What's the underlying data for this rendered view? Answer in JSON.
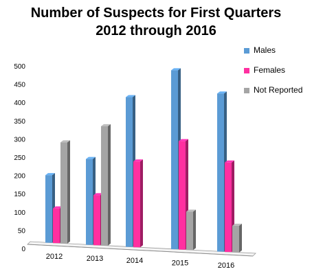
{
  "chart_data": {
    "type": "bar",
    "title_lines": [
      "Number of Suspects for First Quarters",
      "2012 through 2016"
    ],
    "categories": [
      "2012",
      "2013",
      "2014",
      "2015",
      "2016"
    ],
    "series": [
      {
        "name": "Males",
        "values": [
          185,
          235,
          410,
          490,
          433
        ],
        "color": "#5b9bd5"
      },
      {
        "name": "Females",
        "values": [
          95,
          137,
          235,
          297,
          245
        ],
        "color": "#ff2fa0"
      },
      {
        "name": "Not Reported",
        "values": [
          277,
          327,
          0,
          105,
          73
        ],
        "color": "#a5a5a5"
      }
    ],
    "yticks": [
      0,
      50,
      100,
      150,
      200,
      250,
      300,
      350,
      400,
      450,
      500
    ],
    "ylim": [
      0,
      500
    ],
    "grid": false,
    "legend_position": "right",
    "style": "3d-bar"
  }
}
